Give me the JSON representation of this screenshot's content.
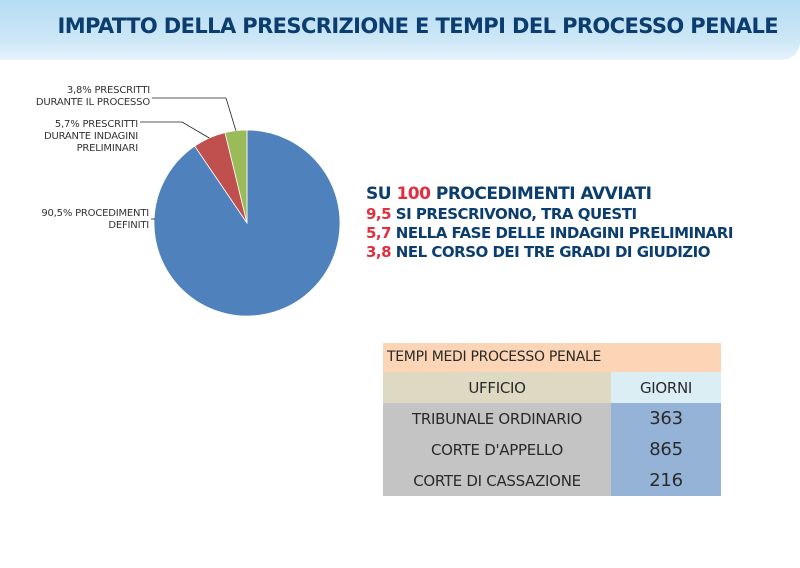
{
  "header": {
    "title": "IMPATTO DELLA PRESCRIZIONE E TEMPI DEL PROCESSO PENALE"
  },
  "chart_data": {
    "type": "pie",
    "slices": [
      {
        "value": 90.5,
        "label_lines": [
          "90,5% PROCEDIMENTI",
          "DEFINITI"
        ],
        "color": "#4f81bd"
      },
      {
        "value": 5.7,
        "label_lines": [
          "5,7% PRESCRITTI",
          "DURANTE INDAGINI",
          "PRELIMINARI"
        ],
        "color": "#c0504d"
      },
      {
        "value": 3.8,
        "label_lines": [
          "3,8% PRESCRITTI",
          "DURANTE IL PROCESSO"
        ],
        "color": "#9bbb59"
      }
    ]
  },
  "summary": {
    "line0": {
      "prefix": "SU ",
      "num": "100",
      "suffix": " PROCEDIMENTI AVVIATI"
    },
    "lines": [
      {
        "num": "9,5",
        "text": " SI PRESCRIVONO, TRA QUESTI"
      },
      {
        "num": "5,7",
        "text": " NELLA FASE DELLE INDAGINI PRELIMINARI"
      },
      {
        "num": "3,8",
        "text": " NEL CORSO DEI TRE GRADI DI GIUDIZIO"
      }
    ]
  },
  "table": {
    "caption": "TEMPI MEDI PROCESSO PENALE",
    "headers": [
      "UFFICIO",
      "GIORNI"
    ],
    "rows": [
      [
        "TRIBUNALE ORDINARIO",
        "363"
      ],
      [
        "CORTE D'APPELLO",
        "865"
      ],
      [
        "CORTE DI CASSAZIONE",
        "216"
      ]
    ]
  }
}
